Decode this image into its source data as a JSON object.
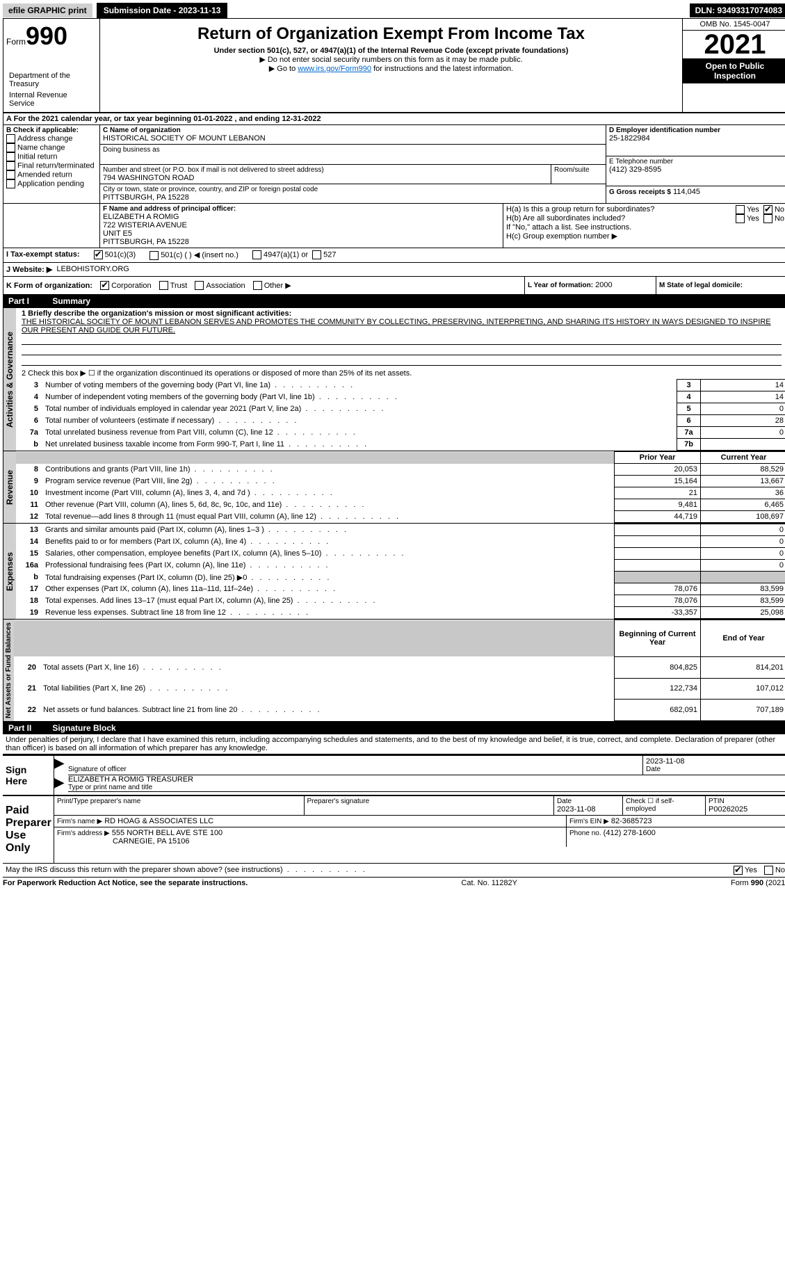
{
  "topbar": {
    "efile": "efile GRAPHIC print",
    "submission_label": "Submission Date - 2023-11-13",
    "dln": "DLN: 93493317074083"
  },
  "header": {
    "form_prefix": "Form",
    "form_number": "990",
    "title": "Return of Organization Exempt From Income Tax",
    "subtitle": "Under section 501(c), 527, or 4947(a)(1) of the Internal Revenue Code (except private foundations)",
    "note1": "▶ Do not enter social security numbers on this form as it may be made public.",
    "note2_pre": "▶ Go to ",
    "note2_link": "www.irs.gov/Form990",
    "note2_post": " for instructions and the latest information.",
    "omb": "OMB No. 1545-0047",
    "year": "2021",
    "inspect": "Open to Public Inspection",
    "dept": "Department of the Treasury",
    "irs": "Internal Revenue Service"
  },
  "row_a": {
    "label": "A For the 2021 calendar year, or tax year beginning 01-01-2022    , and ending 12-31-2022"
  },
  "section_b": {
    "title": "B Check if applicable:",
    "opts": [
      "Address change",
      "Name change",
      "Initial return",
      "Final return/terminated",
      "Amended return",
      "Application pending"
    ]
  },
  "section_c": {
    "label": "C Name of organization",
    "name": "HISTORICAL SOCIETY OF MOUNT LEBANON",
    "dba_label": "Doing business as",
    "street_label": "Number and street (or P.O. box if mail is not delivered to street address)",
    "room_label": "Room/suite",
    "street": "794 WASHINGTON ROAD",
    "city_label": "City or town, state or province, country, and ZIP or foreign postal code",
    "city": "PITTSBURGH, PA  15228"
  },
  "section_d": {
    "label": "D Employer identification number",
    "value": "25-1822984"
  },
  "section_e": {
    "label": "E Telephone number",
    "value": "(412) 329-8595"
  },
  "section_g": {
    "label": "G Gross receipts $",
    "value": "114,045"
  },
  "section_f": {
    "label": "F  Name and address of principal officer:",
    "name": "ELIZABETH A ROMIG",
    "addr1": "722 WISTERIA AVENUE",
    "addr2": "UNIT E5",
    "addr3": "PITTSBURGH, PA  15228"
  },
  "section_h": {
    "a_label": "H(a)  Is this a group return for subordinates?",
    "b_label": "H(b)  Are all subordinates included?",
    "b_note": "If \"No,\" attach a list. See instructions.",
    "c_label": "H(c)  Group exemption number ▶",
    "yes": "Yes",
    "no": "No"
  },
  "section_i": {
    "label": "I    Tax-exempt status:",
    "o1": "501(c)(3)",
    "o2": "501(c) (   ) ◀ (insert no.)",
    "o3": "4947(a)(1) or",
    "o4": "527"
  },
  "section_j": {
    "label": "J   Website: ▶",
    "value": "LEBOHISTORY.ORG"
  },
  "section_k": {
    "label": "K Form of organization:",
    "opts": [
      "Corporation",
      "Trust",
      "Association",
      "Other ▶"
    ]
  },
  "section_l": {
    "label": "L Year of formation:",
    "value": "2000"
  },
  "section_m": {
    "label": "M State of legal domicile:"
  },
  "part1": {
    "bar": "Part I",
    "title": "Summary",
    "line1_label": "1  Briefly describe the organization's mission or most significant activities:",
    "line1_text": "THE HISTORICAL SOCIETY OF MOUNT LEBANON SERVES AND PROMOTES THE COMMUNITY BY COLLECTING, PRESERVING, INTERPRETING, AND SHARING ITS HISTORY IN WAYS DESIGNED TO INSPIRE OUR PRESENT AND GUIDE OUR FUTURE.",
    "line2": "2   Check this box ▶ ☐  if the organization discontinued its operations or disposed of more than 25% of its net assets.",
    "gov_label": "Activities & Governance",
    "rev_label": "Revenue",
    "exp_label": "Expenses",
    "net_label": "Net Assets or Fund Balances",
    "rows_gov": [
      {
        "n": "3",
        "t": "Number of voting members of the governing body (Part VI, line 1a)",
        "i": "3",
        "v": "14"
      },
      {
        "n": "4",
        "t": "Number of independent voting members of the governing body (Part VI, line 1b)",
        "i": "4",
        "v": "14"
      },
      {
        "n": "5",
        "t": "Total number of individuals employed in calendar year 2021 (Part V, line 2a)",
        "i": "5",
        "v": "0"
      },
      {
        "n": "6",
        "t": "Total number of volunteers (estimate if necessary)",
        "i": "6",
        "v": "28"
      },
      {
        "n": "7a",
        "t": "Total unrelated business revenue from Part VIII, column (C), line 12",
        "i": "7a",
        "v": "0"
      },
      {
        "n": "b",
        "t": "Net unrelated business taxable income from Form 990-T, Part I, line 11",
        "i": "7b",
        "v": ""
      }
    ],
    "col_prior": "Prior Year",
    "col_current": "Current Year",
    "rows_rev": [
      {
        "n": "8",
        "t": "Contributions and grants (Part VIII, line 1h)",
        "p": "20,053",
        "c": "88,529"
      },
      {
        "n": "9",
        "t": "Program service revenue (Part VIII, line 2g)",
        "p": "15,164",
        "c": "13,667"
      },
      {
        "n": "10",
        "t": "Investment income (Part VIII, column (A), lines 3, 4, and 7d )",
        "p": "21",
        "c": "36"
      },
      {
        "n": "11",
        "t": "Other revenue (Part VIII, column (A), lines 5, 6d, 8c, 9c, 10c, and 11e)",
        "p": "9,481",
        "c": "6,465"
      },
      {
        "n": "12",
        "t": "Total revenue—add lines 8 through 11 (must equal Part VIII, column (A), line 12)",
        "p": "44,719",
        "c": "108,697"
      }
    ],
    "rows_exp": [
      {
        "n": "13",
        "t": "Grants and similar amounts paid (Part IX, column (A), lines 1–3 )",
        "p": "",
        "c": "0"
      },
      {
        "n": "14",
        "t": "Benefits paid to or for members (Part IX, column (A), line 4)",
        "p": "",
        "c": "0"
      },
      {
        "n": "15",
        "t": "Salaries, other compensation, employee benefits (Part IX, column (A), lines 5–10)",
        "p": "",
        "c": "0"
      },
      {
        "n": "16a",
        "t": "Professional fundraising fees (Part IX, column (A), line 11e)",
        "p": "",
        "c": "0"
      },
      {
        "n": "b",
        "t": "Total fundraising expenses (Part IX, column (D), line 25) ▶0",
        "p": "GREY",
        "c": "GREY"
      },
      {
        "n": "17",
        "t": "Other expenses (Part IX, column (A), lines 11a–11d, 11f–24e)",
        "p": "78,076",
        "c": "83,599"
      },
      {
        "n": "18",
        "t": "Total expenses. Add lines 13–17 (must equal Part IX, column (A), line 25)",
        "p": "78,076",
        "c": "83,599"
      },
      {
        "n": "19",
        "t": "Revenue less expenses. Subtract line 18 from line 12",
        "p": "-33,357",
        "c": "25,098"
      }
    ],
    "col_begin": "Beginning of Current Year",
    "col_end": "End of Year",
    "rows_net": [
      {
        "n": "20",
        "t": "Total assets (Part X, line 16)",
        "p": "804,825",
        "c": "814,201"
      },
      {
        "n": "21",
        "t": "Total liabilities (Part X, line 26)",
        "p": "122,734",
        "c": "107,012"
      },
      {
        "n": "22",
        "t": "Net assets or fund balances. Subtract line 21 from line 20",
        "p": "682,091",
        "c": "707,189"
      }
    ]
  },
  "part2": {
    "bar": "Part II",
    "title": "Signature Block",
    "decl": "Under penalties of perjury, I declare that I have examined this return, including accompanying schedules and statements, and to the best of my knowledge and belief, it is true, correct, and complete. Declaration of preparer (other than officer) is based on all information of which preparer has any knowledge.",
    "sign_here": "Sign Here",
    "sig_officer": "Signature of officer",
    "sig_date": "Date",
    "sig_date_val": "2023-11-08",
    "sig_name": "ELIZABETH A ROMIG  TREASURER",
    "sig_name_label": "Type or print name and title",
    "paid": "Paid Preparer Use Only",
    "p_name_label": "Print/Type preparer's name",
    "p_sig_label": "Preparer's signature",
    "p_date_label": "Date",
    "p_date": "2023-11-08",
    "p_check": "Check ☐ if self-employed",
    "ptin_label": "PTIN",
    "ptin": "P00262025",
    "firm_name_label": "Firm's name    ▶",
    "firm_name": "RD HOAG & ASSOCIATES LLC",
    "firm_ein_label": "Firm's EIN ▶",
    "firm_ein": "82-3685723",
    "firm_addr_label": "Firm's address ▶",
    "firm_addr1": "555 NORTH BELL AVE STE 100",
    "firm_addr2": "CARNEGIE, PA  15106",
    "phone_label": "Phone no.",
    "phone": "(412) 278-1600",
    "may_irs": "May the IRS discuss this return with the preparer shown above? (see instructions)"
  },
  "footer": {
    "left": "For Paperwork Reduction Act Notice, see the separate instructions.",
    "mid": "Cat. No. 11282Y",
    "right": "Form 990 (2021)"
  }
}
